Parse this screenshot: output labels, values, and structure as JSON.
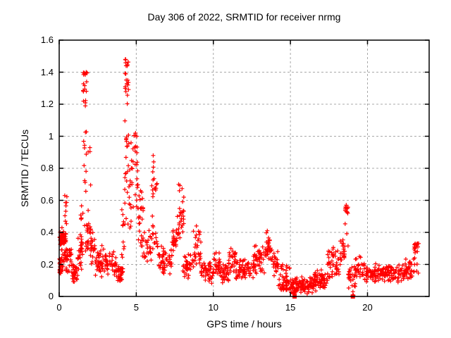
{
  "chart_data": {
    "type": "scatter",
    "title": "Day 306 of 2022, SRMTID for receiver nrmg",
    "xlabel": "GPS time / hours",
    "ylabel": "SRMTID / TECUs",
    "xlim": [
      0,
      24
    ],
    "ylim": [
      0,
      1.6
    ],
    "xtick_values": [
      0,
      5,
      10,
      15,
      20
    ],
    "xtick_labels": [
      "0",
      "5",
      "10",
      "15",
      "20"
    ],
    "ytick_values": [
      0,
      0.2,
      0.4,
      0.6,
      0.8,
      1,
      1.2,
      1.4,
      1.6
    ],
    "ytick_labels": [
      "0",
      "0.2",
      "0.4",
      "0.6",
      "0.8",
      "1",
      "1.2",
      "1.4",
      "1.6"
    ],
    "grid": true,
    "legend": "none",
    "marker": "plus",
    "marker_color": "#ff0000",
    "grid_color": "#a8a8a8",
    "axis_color": "#000000",
    "background_color": "#ffffff",
    "series_name": "SRMTID",
    "render_seed": 306,
    "notable_peaks": [
      {
        "t": 0.36,
        "v": 0.63
      },
      {
        "t": 1.75,
        "v": 1.4
      },
      {
        "t": 4.31,
        "v": 1.48
      },
      {
        "t": 4.95,
        "v": 1.02
      },
      {
        "t": 6.1,
        "v": 0.88
      },
      {
        "t": 7.75,
        "v": 0.7
      },
      {
        "t": 8.9,
        "v": 0.44
      },
      {
        "t": 13.5,
        "v": 0.41
      },
      {
        "t": 18.62,
        "v": 0.57
      },
      {
        "t": 23.32,
        "v": 0.33
      }
    ],
    "points": [
      [
        0.36,
        0.63
      ],
      [
        1.75,
        1.4
      ],
      [
        1.78,
        1.34
      ],
      [
        4.31,
        1.48
      ],
      [
        4.34,
        1.44
      ],
      [
        4.29,
        1.31
      ],
      [
        4.95,
        1.02
      ],
      [
        6.1,
        0.88
      ],
      [
        6.13,
        0.84
      ],
      [
        7.75,
        0.7
      ],
      [
        7.8,
        0.66
      ],
      [
        8.9,
        0.44
      ],
      [
        13.5,
        0.41
      ],
      [
        18.62,
        0.57
      ],
      [
        18.64,
        0.53
      ],
      [
        23.32,
        0.33
      ]
    ],
    "zero_markers": [
      15.27,
      19.05
    ],
    "segments_key": "t0,t1,count,ymin,ymax,weight(0=uniform,1=center,2=low,3=high)",
    "segments": [
      [
        0.02,
        0.12,
        24,
        0.13,
        0.26,
        1
      ],
      [
        0.02,
        0.18,
        20,
        0.3,
        0.44,
        1
      ],
      [
        0.15,
        0.45,
        34,
        0.32,
        0.42,
        1
      ],
      [
        0.15,
        0.5,
        20,
        0.16,
        0.3,
        0
      ],
      [
        0.32,
        0.5,
        8,
        0.42,
        0.63,
        0
      ],
      [
        0.45,
        0.8,
        28,
        0.14,
        0.34,
        1
      ],
      [
        0.8,
        1.2,
        32,
        0.07,
        0.22,
        1
      ],
      [
        1.2,
        1.5,
        28,
        0.15,
        0.45,
        1
      ],
      [
        1.35,
        1.52,
        5,
        0.45,
        0.62,
        0
      ],
      [
        1.55,
        1.85,
        28,
        0.55,
        1.4,
        3
      ],
      [
        1.5,
        1.95,
        18,
        0.2,
        0.55,
        1
      ],
      [
        1.85,
        2.1,
        14,
        0.3,
        0.95,
        2
      ],
      [
        2.0,
        2.35,
        20,
        0.15,
        0.42,
        1
      ],
      [
        2.35,
        3.0,
        44,
        0.1,
        0.32,
        1
      ],
      [
        3.0,
        3.7,
        40,
        0.12,
        0.3,
        1
      ],
      [
        3.7,
        4.15,
        30,
        0.08,
        0.22,
        1
      ],
      [
        4.05,
        4.25,
        10,
        0.18,
        0.55,
        0
      ],
      [
        4.25,
        4.5,
        28,
        0.85,
        1.48,
        3
      ],
      [
        4.25,
        4.5,
        12,
        0.45,
        0.85,
        0
      ],
      [
        4.5,
        4.8,
        20,
        0.4,
        1.0,
        1
      ],
      [
        4.8,
        5.1,
        16,
        0.5,
        1.02,
        3
      ],
      [
        5.0,
        5.45,
        26,
        0.3,
        0.75,
        1
      ],
      [
        5.3,
        6.0,
        30,
        0.2,
        0.42,
        1
      ],
      [
        6.0,
        6.35,
        16,
        0.45,
        0.88,
        1
      ],
      [
        6.0,
        6.4,
        14,
        0.25,
        0.45,
        1
      ],
      [
        6.4,
        7.3,
        48,
        0.12,
        0.32,
        1
      ],
      [
        7.3,
        7.6,
        22,
        0.22,
        0.48,
        1
      ],
      [
        7.6,
        8.1,
        32,
        0.32,
        0.7,
        1
      ],
      [
        8.0,
        8.7,
        38,
        0.1,
        0.28,
        1
      ],
      [
        8.7,
        9.2,
        28,
        0.18,
        0.44,
        1
      ],
      [
        9.2,
        10.0,
        44,
        0.08,
        0.24,
        1
      ],
      [
        10.0,
        10.45,
        26,
        0.1,
        0.3,
        1
      ],
      [
        10.45,
        11.0,
        34,
        0.07,
        0.2,
        1
      ],
      [
        11.0,
        11.45,
        26,
        0.13,
        0.33,
        1
      ],
      [
        11.45,
        12.6,
        62,
        0.08,
        0.24,
        1
      ],
      [
        12.6,
        13.35,
        44,
        0.13,
        0.33,
        1
      ],
      [
        13.35,
        13.75,
        28,
        0.18,
        0.41,
        1
      ],
      [
        13.75,
        14.2,
        26,
        0.12,
        0.3,
        1
      ],
      [
        14.2,
        15.0,
        50,
        0.04,
        0.2,
        2
      ],
      [
        15.0,
        16.5,
        110,
        0.01,
        0.13,
        1
      ],
      [
        15.2,
        15.35,
        6,
        0.0,
        0.04,
        2
      ],
      [
        16.5,
        17.4,
        60,
        0.03,
        0.17,
        1
      ],
      [
        17.4,
        18.2,
        46,
        0.1,
        0.32,
        1
      ],
      [
        18.2,
        18.55,
        20,
        0.16,
        0.38,
        1
      ],
      [
        18.55,
        18.75,
        12,
        0.3,
        0.57,
        3
      ],
      [
        18.75,
        19.2,
        26,
        0.04,
        0.2,
        1
      ],
      [
        19.0,
        19.12,
        5,
        0.0,
        0.03,
        2
      ],
      [
        19.2,
        19.8,
        30,
        0.1,
        0.28,
        1
      ],
      [
        19.8,
        20.6,
        46,
        0.08,
        0.21,
        1
      ],
      [
        20.6,
        22.4,
        100,
        0.08,
        0.21,
        1
      ],
      [
        22.4,
        23.0,
        36,
        0.1,
        0.25,
        1
      ],
      [
        23.0,
        23.35,
        22,
        0.14,
        0.33,
        3
      ]
    ]
  }
}
